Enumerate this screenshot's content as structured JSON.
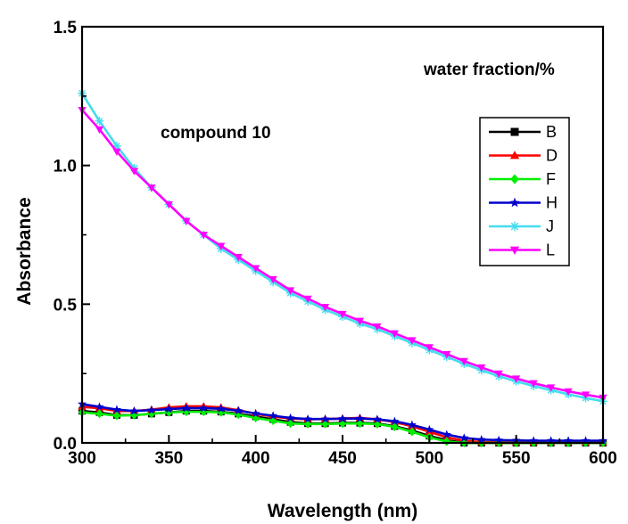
{
  "chart_data": {
    "type": "line",
    "title": "",
    "xlabel": "Wavelength (nm)",
    "ylabel": "Absorbance",
    "xlim": [
      300,
      600
    ],
    "ylim": [
      0.0,
      1.5
    ],
    "x_ticks": [
      "300",
      "350",
      "400",
      "450",
      "500",
      "550",
      "600"
    ],
    "y_ticks": [
      "0.0",
      "0.5",
      "1.0",
      "1.5"
    ],
    "grid": false,
    "legend_placement": "upper-right",
    "annotations": [
      {
        "id": "legend-title",
        "text": "water fraction/%"
      },
      {
        "id": "compound",
        "text": "compound 10"
      }
    ],
    "x": [
      300,
      310,
      320,
      330,
      340,
      350,
      360,
      370,
      380,
      390,
      400,
      410,
      420,
      430,
      440,
      450,
      460,
      470,
      480,
      490,
      500,
      510,
      520,
      530,
      540,
      550,
      560,
      570,
      580,
      590,
      600
    ],
    "series": [
      {
        "name": "B",
        "color": "#000000",
        "marker": "square",
        "values": [
          0.115,
          0.11,
          0.1,
          0.1,
          0.105,
          0.11,
          0.115,
          0.115,
          0.112,
          0.105,
          0.095,
          0.085,
          0.075,
          0.07,
          0.07,
          0.072,
          0.072,
          0.07,
          0.06,
          0.045,
          0.025,
          0.01,
          0.0,
          0.0,
          0.0,
          0.0,
          0.0,
          0.0,
          0.0,
          0.0,
          0.0
        ]
      },
      {
        "name": "D",
        "color": "#ff0000",
        "marker": "triangle-up",
        "values": [
          0.13,
          0.125,
          0.115,
          0.115,
          0.12,
          0.128,
          0.132,
          0.132,
          0.128,
          0.118,
          0.105,
          0.095,
          0.088,
          0.085,
          0.086,
          0.088,
          0.09,
          0.085,
          0.075,
          0.06,
          0.04,
          0.02,
          0.008,
          0.003,
          0.002,
          0.002,
          0.002,
          0.002,
          0.002,
          0.002,
          0.002
        ]
      },
      {
        "name": "F",
        "color": "#00ee00",
        "marker": "diamond",
        "values": [
          0.11,
          0.105,
          0.098,
          0.1,
          0.105,
          0.11,
          0.112,
          0.112,
          0.11,
          0.102,
          0.09,
          0.08,
          0.07,
          0.068,
          0.068,
          0.07,
          0.07,
          0.068,
          0.058,
          0.04,
          0.02,
          0.005,
          0.0,
          0.0,
          0.0,
          0.0,
          0.0,
          0.0,
          0.0,
          0.0,
          0.0
        ]
      },
      {
        "name": "H",
        "color": "#0000cc",
        "marker": "star",
        "values": [
          0.14,
          0.13,
          0.12,
          0.115,
          0.118,
          0.122,
          0.125,
          0.125,
          0.123,
          0.116,
          0.106,
          0.098,
          0.09,
          0.086,
          0.086,
          0.087,
          0.088,
          0.085,
          0.078,
          0.065,
          0.048,
          0.03,
          0.018,
          0.012,
          0.01,
          0.009,
          0.008,
          0.008,
          0.008,
          0.008,
          0.008
        ]
      },
      {
        "name": "J",
        "color": "#44ddee",
        "marker": "asterisk",
        "values": [
          1.26,
          1.16,
          1.07,
          0.99,
          0.92,
          0.86,
          0.8,
          0.75,
          0.7,
          0.66,
          0.62,
          0.58,
          0.54,
          0.51,
          0.48,
          0.455,
          0.43,
          0.41,
          0.385,
          0.36,
          0.335,
          0.31,
          0.285,
          0.262,
          0.24,
          0.222,
          0.205,
          0.19,
          0.175,
          0.162,
          0.15
        ]
      },
      {
        "name": "L",
        "color": "#ff00ff",
        "marker": "triangle-down",
        "values": [
          1.2,
          1.13,
          1.05,
          0.98,
          0.92,
          0.86,
          0.8,
          0.75,
          0.71,
          0.67,
          0.63,
          0.59,
          0.55,
          0.52,
          0.49,
          0.465,
          0.44,
          0.42,
          0.395,
          0.37,
          0.345,
          0.32,
          0.295,
          0.272,
          0.25,
          0.232,
          0.215,
          0.2,
          0.186,
          0.174,
          0.163
        ]
      }
    ]
  }
}
